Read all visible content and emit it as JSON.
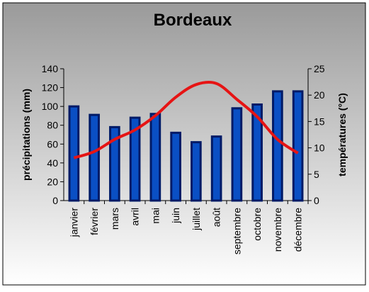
{
  "chart_data": {
    "type": "bar-line",
    "title": "Bordeaux",
    "categories": [
      "janvier",
      "février",
      "mars",
      "avril",
      "mai",
      "juin",
      "juillet",
      "août",
      "septembre",
      "octobre",
      "novembre",
      "décembre"
    ],
    "series": [
      {
        "name": "précipitations",
        "color": "#0a4fc4",
        "values": [
          100,
          91,
          78,
          88,
          92,
          72,
          62,
          68,
          98,
          102,
          116,
          116
        ]
      },
      {
        "name": "températures",
        "color": "#e61414",
        "axis": "y2",
        "values": [
          8.1,
          9.3,
          11.6,
          13.4,
          16.1,
          19.6,
          22.0,
          22.2,
          19.2,
          15.9,
          11.6,
          9.0
        ]
      }
    ],
    "ylabel": "précipitations (mm)",
    "y2label": "températures (°C)",
    "ylim": [
      0,
      140
    ],
    "yticks": [
      0,
      20,
      40,
      60,
      80,
      100,
      120,
      140
    ],
    "y2lim": [
      0,
      25
    ],
    "y2ticks": [
      0,
      5,
      10,
      15,
      20,
      25
    ],
    "grid": false
  }
}
